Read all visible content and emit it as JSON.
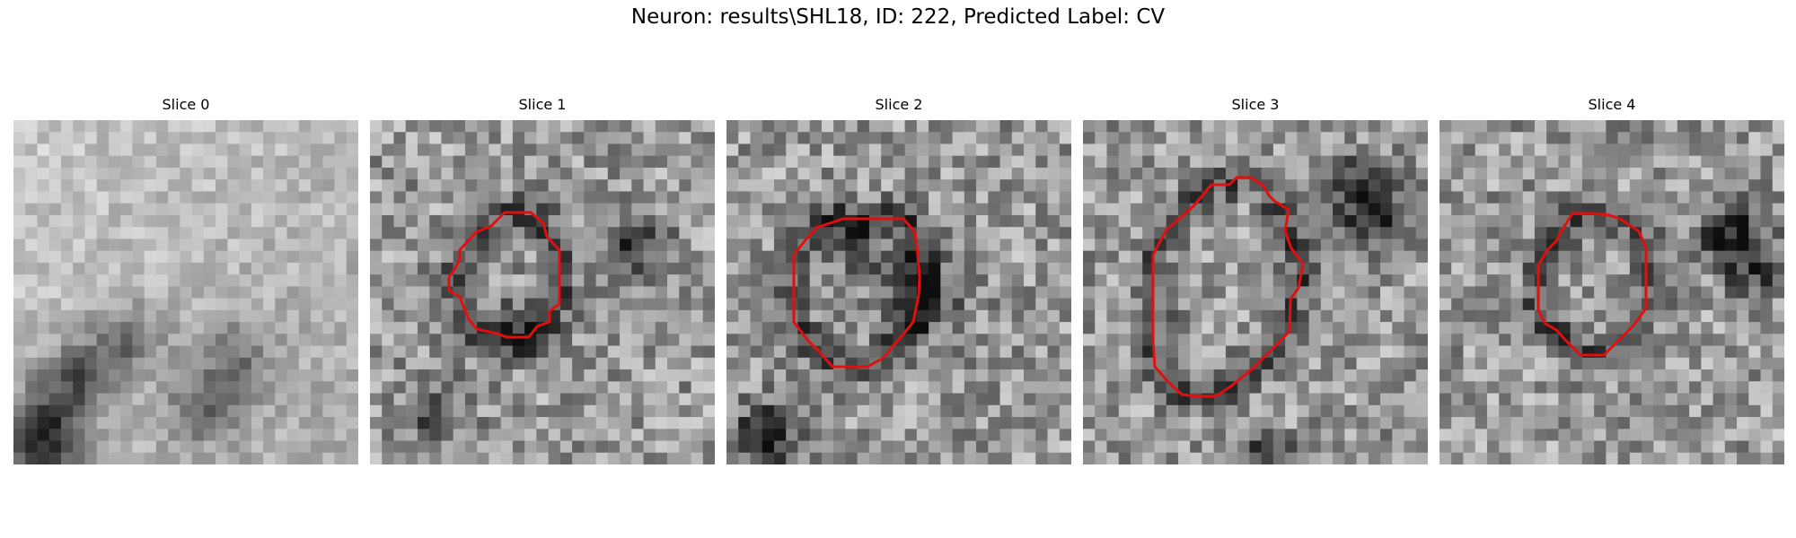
{
  "figure": {
    "title": "Neuron: results\\SHL18, ID: 222, Predicted Label: CV"
  },
  "contour_color": "#e01010",
  "panels": [
    {
      "label": "Slice 0",
      "has_contour": false
    },
    {
      "label": "Slice 1",
      "has_contour": true
    },
    {
      "label": "Slice 2",
      "has_contour": true
    },
    {
      "label": "Slice 3",
      "has_contour": true
    },
    {
      "label": "Slice 4",
      "has_contour": true
    }
  ]
}
